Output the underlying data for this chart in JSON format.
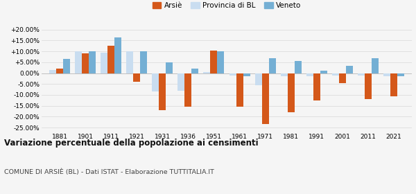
{
  "years": [
    1881,
    1901,
    1911,
    1921,
    1931,
    1936,
    1951,
    1961,
    1971,
    1981,
    1991,
    2001,
    2011,
    2021
  ],
  "arsie": [
    2.0,
    9.0,
    12.5,
    -4.0,
    -17.0,
    -15.5,
    10.5,
    -15.5,
    -23.5,
    -18.0,
    -12.5,
    -4.5,
    -12.0,
    -10.5
  ],
  "provincia_bl": [
    1.5,
    10.0,
    9.5,
    10.0,
    -8.5,
    -8.0,
    0.5,
    -1.0,
    -5.5,
    -1.5,
    -1.5,
    -1.0,
    -1.0,
    -1.5
  ],
  "veneto": [
    6.5,
    10.0,
    16.5,
    10.0,
    5.0,
    2.0,
    10.0,
    -1.5,
    7.0,
    5.5,
    1.0,
    3.5,
    7.0,
    -1.5
  ],
  "arsie_color": "#d4581a",
  "provincia_color": "#c9ddf0",
  "veneto_color": "#74afd4",
  "title": "Variazione percentuale della popolazione ai censimenti",
  "subtitle": "COMUNE DI ARSIÈ (BL) - Dati ISTAT - Elaborazione TUTTITALIA.IT",
  "ylim": [
    -27,
    22
  ],
  "yticks": [
    -25.0,
    -20.0,
    -15.0,
    -10.0,
    -5.0,
    0.0,
    5.0,
    10.0,
    15.0,
    20.0
  ],
  "background_color": "#f5f5f5",
  "grid_color": "#dddddd",
  "bar_width": 0.27
}
